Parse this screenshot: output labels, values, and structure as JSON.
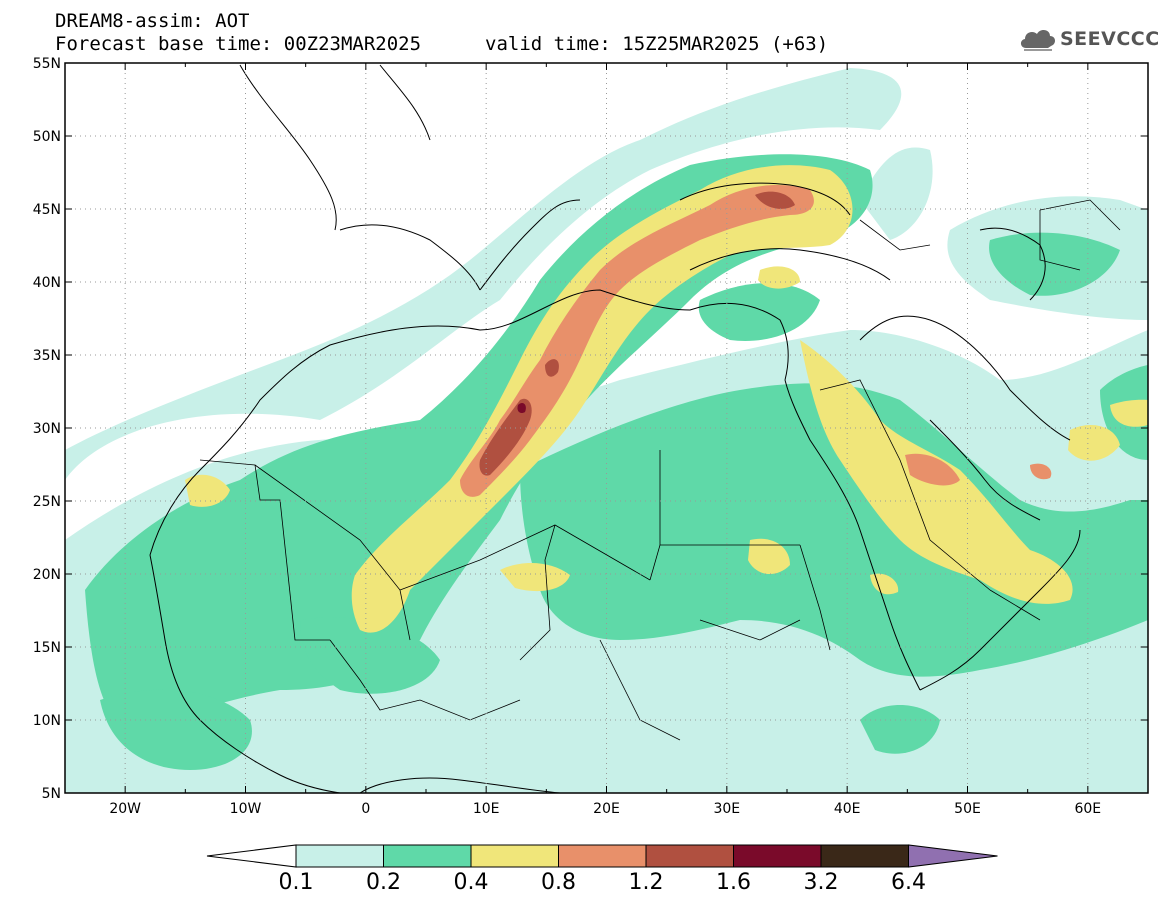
{
  "header": {
    "title": "DREAM8-assim: AOT",
    "base_time": "Forecast base time: 00Z23MAR2025",
    "valid_time": "valid time: 15Z25MAR2025 (+63)"
  },
  "logo": {
    "text": "SEEVCCC",
    "icon": "cloud-icon"
  },
  "map": {
    "lon_range": [
      -25,
      65
    ],
    "lat_range": [
      5,
      55
    ],
    "lat_labels": [
      "5N",
      "10N",
      "15N",
      "20N",
      "25N",
      "30N",
      "35N",
      "40N",
      "45N",
      "50N",
      "55N"
    ],
    "lon_labels": [
      "20W",
      "10W",
      "0",
      "10E",
      "20E",
      "30E",
      "40E",
      "50E",
      "60E"
    ],
    "lat_values": [
      5,
      10,
      15,
      20,
      25,
      30,
      35,
      40,
      45,
      50,
      55
    ],
    "lon_values": [
      -20,
      -10,
      0,
      10,
      20,
      30,
      40,
      50,
      60
    ],
    "grid": "dotted"
  },
  "colorbar": {
    "labels": [
      "0.1",
      "0.2",
      "0.4",
      "0.8",
      "1.2",
      "1.6",
      "3.2",
      "6.4"
    ],
    "colors": [
      "#c8f0e8",
      "#5fd9a8",
      "#f0e67a",
      "#e8906a",
      "#b05040",
      "#7a0a2a",
      "#3a2818"
    ],
    "under_color": "#ffffff",
    "over_color": "#9070b0"
  }
}
